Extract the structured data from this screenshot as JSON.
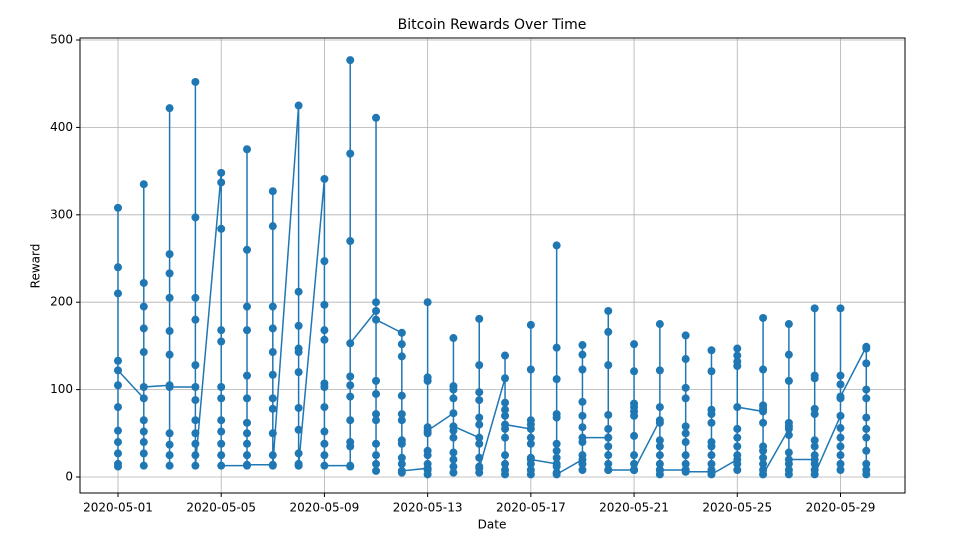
{
  "chart_data": {
    "type": "line",
    "title": "Bitcoin Rewards Over Time",
    "x_label": "Date",
    "y_label": "Reward",
    "color": "#1f77b4",
    "grid": true,
    "ylim": [
      -18.3,
      502.3
    ],
    "yticks": [
      0,
      100,
      200,
      300,
      400,
      500
    ],
    "xlim": [
      "2020-04-29T12:40",
      "2020-05-31T12:00"
    ],
    "xticks": [
      "2020-05-01",
      "2020-05-05",
      "2020-05-09",
      "2020-05-13",
      "2020-05-17",
      "2020-05-21",
      "2020-05-25",
      "2020-05-29"
    ],
    "x": [
      "2020-05-01",
      "2020-05-01",
      "2020-05-01",
      "2020-05-01",
      "2020-05-01",
      "2020-05-01",
      "2020-05-01",
      "2020-05-01",
      "2020-05-01",
      "2020-05-01",
      "2020-05-01",
      "2020-05-01",
      "2020-05-02",
      "2020-05-02",
      "2020-05-02",
      "2020-05-02",
      "2020-05-02",
      "2020-05-02",
      "2020-05-02",
      "2020-05-02",
      "2020-05-02",
      "2020-05-02",
      "2020-05-02",
      "2020-05-02",
      "2020-05-03",
      "2020-05-03",
      "2020-05-03",
      "2020-05-03",
      "2020-05-03",
      "2020-05-03",
      "2020-05-03",
      "2020-05-03",
      "2020-05-03",
      "2020-05-03",
      "2020-05-03",
      "2020-05-03",
      "2020-05-04",
      "2020-05-04",
      "2020-05-04",
      "2020-05-04",
      "2020-05-04",
      "2020-05-04",
      "2020-05-04",
      "2020-05-04",
      "2020-05-04",
      "2020-05-04",
      "2020-05-04",
      "2020-05-04",
      "2020-05-05",
      "2020-05-05",
      "2020-05-05",
      "2020-05-05",
      "2020-05-05",
      "2020-05-05",
      "2020-05-05",
      "2020-05-05",
      "2020-05-05",
      "2020-05-05",
      "2020-05-05",
      "2020-05-05",
      "2020-05-06",
      "2020-05-06",
      "2020-05-06",
      "2020-05-06",
      "2020-05-06",
      "2020-05-06",
      "2020-05-06",
      "2020-05-06",
      "2020-05-06",
      "2020-05-06",
      "2020-05-06",
      "2020-05-06",
      "2020-05-07",
      "2020-05-07",
      "2020-05-07",
      "2020-05-07",
      "2020-05-07",
      "2020-05-07",
      "2020-05-07",
      "2020-05-07",
      "2020-05-07",
      "2020-05-07",
      "2020-05-07",
      "2020-05-07",
      "2020-05-08",
      "2020-05-08",
      "2020-05-08",
      "2020-05-08",
      "2020-05-08",
      "2020-05-08",
      "2020-05-08",
      "2020-05-08",
      "2020-05-08",
      "2020-05-08",
      "2020-05-08",
      "2020-05-08",
      "2020-05-09",
      "2020-05-09",
      "2020-05-09",
      "2020-05-09",
      "2020-05-09",
      "2020-05-09",
      "2020-05-09",
      "2020-05-09",
      "2020-05-09",
      "2020-05-09",
      "2020-05-09",
      "2020-05-09",
      "2020-05-10",
      "2020-05-10",
      "2020-05-10",
      "2020-05-10",
      "2020-05-10",
      "2020-05-10",
      "2020-05-10",
      "2020-05-10",
      "2020-05-10",
      "2020-05-10",
      "2020-05-10",
      "2020-05-10",
      "2020-05-11",
      "2020-05-11",
      "2020-05-11",
      "2020-05-11",
      "2020-05-11",
      "2020-05-11",
      "2020-05-11",
      "2020-05-11",
      "2020-05-11",
      "2020-05-11",
      "2020-05-11",
      "2020-05-11",
      "2020-05-12",
      "2020-05-12",
      "2020-05-12",
      "2020-05-12",
      "2020-05-12",
      "2020-05-12",
      "2020-05-12",
      "2020-05-12",
      "2020-05-12",
      "2020-05-12",
      "2020-05-12",
      "2020-05-12",
      "2020-05-13",
      "2020-05-13",
      "2020-05-13",
      "2020-05-13",
      "2020-05-13",
      "2020-05-13",
      "2020-05-13",
      "2020-05-13",
      "2020-05-13",
      "2020-05-13",
      "2020-05-13",
      "2020-05-13",
      "2020-05-14",
      "2020-05-14",
      "2020-05-14",
      "2020-05-14",
      "2020-05-14",
      "2020-05-14",
      "2020-05-14",
      "2020-05-14",
      "2020-05-14",
      "2020-05-14",
      "2020-05-14",
      "2020-05-14",
      "2020-05-15",
      "2020-05-15",
      "2020-05-15",
      "2020-05-15",
      "2020-05-15",
      "2020-05-15",
      "2020-05-15",
      "2020-05-15",
      "2020-05-15",
      "2020-05-15",
      "2020-05-15",
      "2020-05-15",
      "2020-05-16",
      "2020-05-16",
      "2020-05-16",
      "2020-05-16",
      "2020-05-16",
      "2020-05-16",
      "2020-05-16",
      "2020-05-16",
      "2020-05-16",
      "2020-05-16",
      "2020-05-16",
      "2020-05-16",
      "2020-05-17",
      "2020-05-17",
      "2020-05-17",
      "2020-05-17",
      "2020-05-17",
      "2020-05-17",
      "2020-05-17",
      "2020-05-17",
      "2020-05-17",
      "2020-05-17",
      "2020-05-17",
      "2020-05-17",
      "2020-05-18",
      "2020-05-18",
      "2020-05-18",
      "2020-05-18",
      "2020-05-18",
      "2020-05-18",
      "2020-05-18",
      "2020-05-18",
      "2020-05-18",
      "2020-05-18",
      "2020-05-18",
      "2020-05-18",
      "2020-05-19",
      "2020-05-19",
      "2020-05-19",
      "2020-05-19",
      "2020-05-19",
      "2020-05-19",
      "2020-05-19",
      "2020-05-19",
      "2020-05-19",
      "2020-05-19",
      "2020-05-19",
      "2020-05-19",
      "2020-05-20",
      "2020-05-20",
      "2020-05-20",
      "2020-05-20",
      "2020-05-20",
      "2020-05-20",
      "2020-05-20",
      "2020-05-20",
      "2020-05-20",
      "2020-05-20",
      "2020-05-20",
      "2020-05-20",
      "2020-05-21",
      "2020-05-21",
      "2020-05-21",
      "2020-05-21",
      "2020-05-21",
      "2020-05-21",
      "2020-05-21",
      "2020-05-21",
      "2020-05-21",
      "2020-05-21",
      "2020-05-21",
      "2020-05-21",
      "2020-05-22",
      "2020-05-22",
      "2020-05-22",
      "2020-05-22",
      "2020-05-22",
      "2020-05-22",
      "2020-05-22",
      "2020-05-22",
      "2020-05-22",
      "2020-05-22",
      "2020-05-22",
      "2020-05-22",
      "2020-05-23",
      "2020-05-23",
      "2020-05-23",
      "2020-05-23",
      "2020-05-23",
      "2020-05-23",
      "2020-05-23",
      "2020-05-23",
      "2020-05-23",
      "2020-05-23",
      "2020-05-23",
      "2020-05-23",
      "2020-05-24",
      "2020-05-24",
      "2020-05-24",
      "2020-05-24",
      "2020-05-24",
      "2020-05-24",
      "2020-05-24",
      "2020-05-24",
      "2020-05-24",
      "2020-05-24",
      "2020-05-24",
      "2020-05-24",
      "2020-05-25",
      "2020-05-25",
      "2020-05-25",
      "2020-05-25",
      "2020-05-25",
      "2020-05-25",
      "2020-05-25",
      "2020-05-25",
      "2020-05-25",
      "2020-05-25",
      "2020-05-25",
      "2020-05-25",
      "2020-05-26",
      "2020-05-26",
      "2020-05-26",
      "2020-05-26",
      "2020-05-26",
      "2020-05-26",
      "2020-05-26",
      "2020-05-26",
      "2020-05-26",
      "2020-05-26",
      "2020-05-26",
      "2020-05-26",
      "2020-05-27",
      "2020-05-27",
      "2020-05-27",
      "2020-05-27",
      "2020-05-27",
      "2020-05-27",
      "2020-05-27",
      "2020-05-27",
      "2020-05-27",
      "2020-05-27",
      "2020-05-27",
      "2020-05-27",
      "2020-05-28",
      "2020-05-28",
      "2020-05-28",
      "2020-05-28",
      "2020-05-28",
      "2020-05-28",
      "2020-05-28",
      "2020-05-28",
      "2020-05-28",
      "2020-05-28",
      "2020-05-28",
      "2020-05-28",
      "2020-05-29",
      "2020-05-29",
      "2020-05-29",
      "2020-05-29",
      "2020-05-29",
      "2020-05-29",
      "2020-05-29",
      "2020-05-29",
      "2020-05-29",
      "2020-05-29",
      "2020-05-29",
      "2020-05-29",
      "2020-05-30",
      "2020-05-30",
      "2020-05-30",
      "2020-05-30",
      "2020-05-30",
      "2020-05-30",
      "2020-05-30",
      "2020-05-30",
      "2020-05-30",
      "2020-05-30",
      "2020-05-30",
      "2020-05-30"
    ],
    "values": [
      308,
      240,
      210,
      133,
      105,
      80,
      53,
      40,
      27,
      15,
      12,
      122,
      90,
      335,
      222,
      195,
      170,
      143,
      65,
      52,
      40,
      27,
      13,
      103,
      105,
      422,
      255,
      233,
      205,
      167,
      140,
      50,
      37,
      25,
      13,
      103,
      103,
      452,
      297,
      205,
      180,
      128,
      88,
      65,
      50,
      38,
      25,
      13,
      348,
      337,
      284,
      168,
      155,
      103,
      90,
      65,
      52,
      38,
      25,
      13,
      13,
      375,
      260,
      195,
      168,
      116,
      90,
      62,
      50,
      38,
      25,
      14,
      14,
      327,
      287,
      195,
      170,
      143,
      117,
      90,
      78,
      50,
      25,
      13,
      425,
      212,
      173,
      147,
      143,
      120,
      79,
      54,
      27,
      15,
      13,
      13,
      341,
      247,
      197,
      168,
      157,
      107,
      103,
      80,
      52,
      38,
      25,
      13,
      13,
      477,
      370,
      270,
      115,
      105,
      92,
      65,
      40,
      35,
      12,
      153,
      190,
      411,
      200,
      110,
      95,
      72,
      65,
      38,
      25,
      15,
      7,
      180,
      165,
      152,
      138,
      93,
      72,
      65,
      42,
      38,
      22,
      15,
      5,
      7,
      10,
      200,
      114,
      110,
      57,
      50,
      30,
      25,
      15,
      8,
      3,
      53,
      73,
      159,
      104,
      100,
      90,
      53,
      45,
      28,
      20,
      12,
      5,
      58,
      45,
      181,
      128,
      97,
      88,
      68,
      60,
      38,
      22,
      12,
      5,
      10,
      113,
      139,
      85,
      77,
      70,
      55,
      45,
      25,
      15,
      8,
      3,
      60,
      55,
      174,
      123,
      65,
      60,
      45,
      38,
      22,
      15,
      8,
      3,
      20,
      15,
      265,
      148,
      112,
      72,
      68,
      38,
      30,
      22,
      12,
      5,
      3,
      20,
      151,
      140,
      123,
      86,
      70,
      57,
      40,
      25,
      15,
      8,
      45,
      45,
      190,
      166,
      128,
      71,
      55,
      45,
      35,
      25,
      15,
      8,
      8,
      8,
      152,
      121,
      84,
      80,
      75,
      70,
      47,
      25,
      15,
      8,
      8,
      65,
      175,
      122,
      80,
      62,
      42,
      35,
      25,
      15,
      8,
      3,
      8,
      8,
      162,
      135,
      102,
      90,
      58,
      50,
      40,
      25,
      15,
      8,
      6,
      6,
      145,
      121,
      77,
      72,
      62,
      40,
      35,
      25,
      15,
      8,
      3,
      20,
      147,
      139,
      132,
      127,
      55,
      45,
      35,
      25,
      15,
      8,
      80,
      75,
      182,
      123,
      82,
      78,
      62,
      35,
      30,
      22,
      15,
      8,
      3,
      55,
      175,
      140,
      110,
      62,
      58,
      48,
      28,
      15,
      8,
      3,
      20,
      20,
      193,
      116,
      113,
      78,
      72,
      42,
      35,
      25,
      15,
      8,
      3,
      70,
      193,
      116,
      106,
      90,
      56,
      45,
      35,
      25,
      15,
      8,
      92,
      149,
      147,
      130,
      100,
      90,
      68,
      55,
      45,
      30,
      15,
      8,
      3
    ]
  }
}
